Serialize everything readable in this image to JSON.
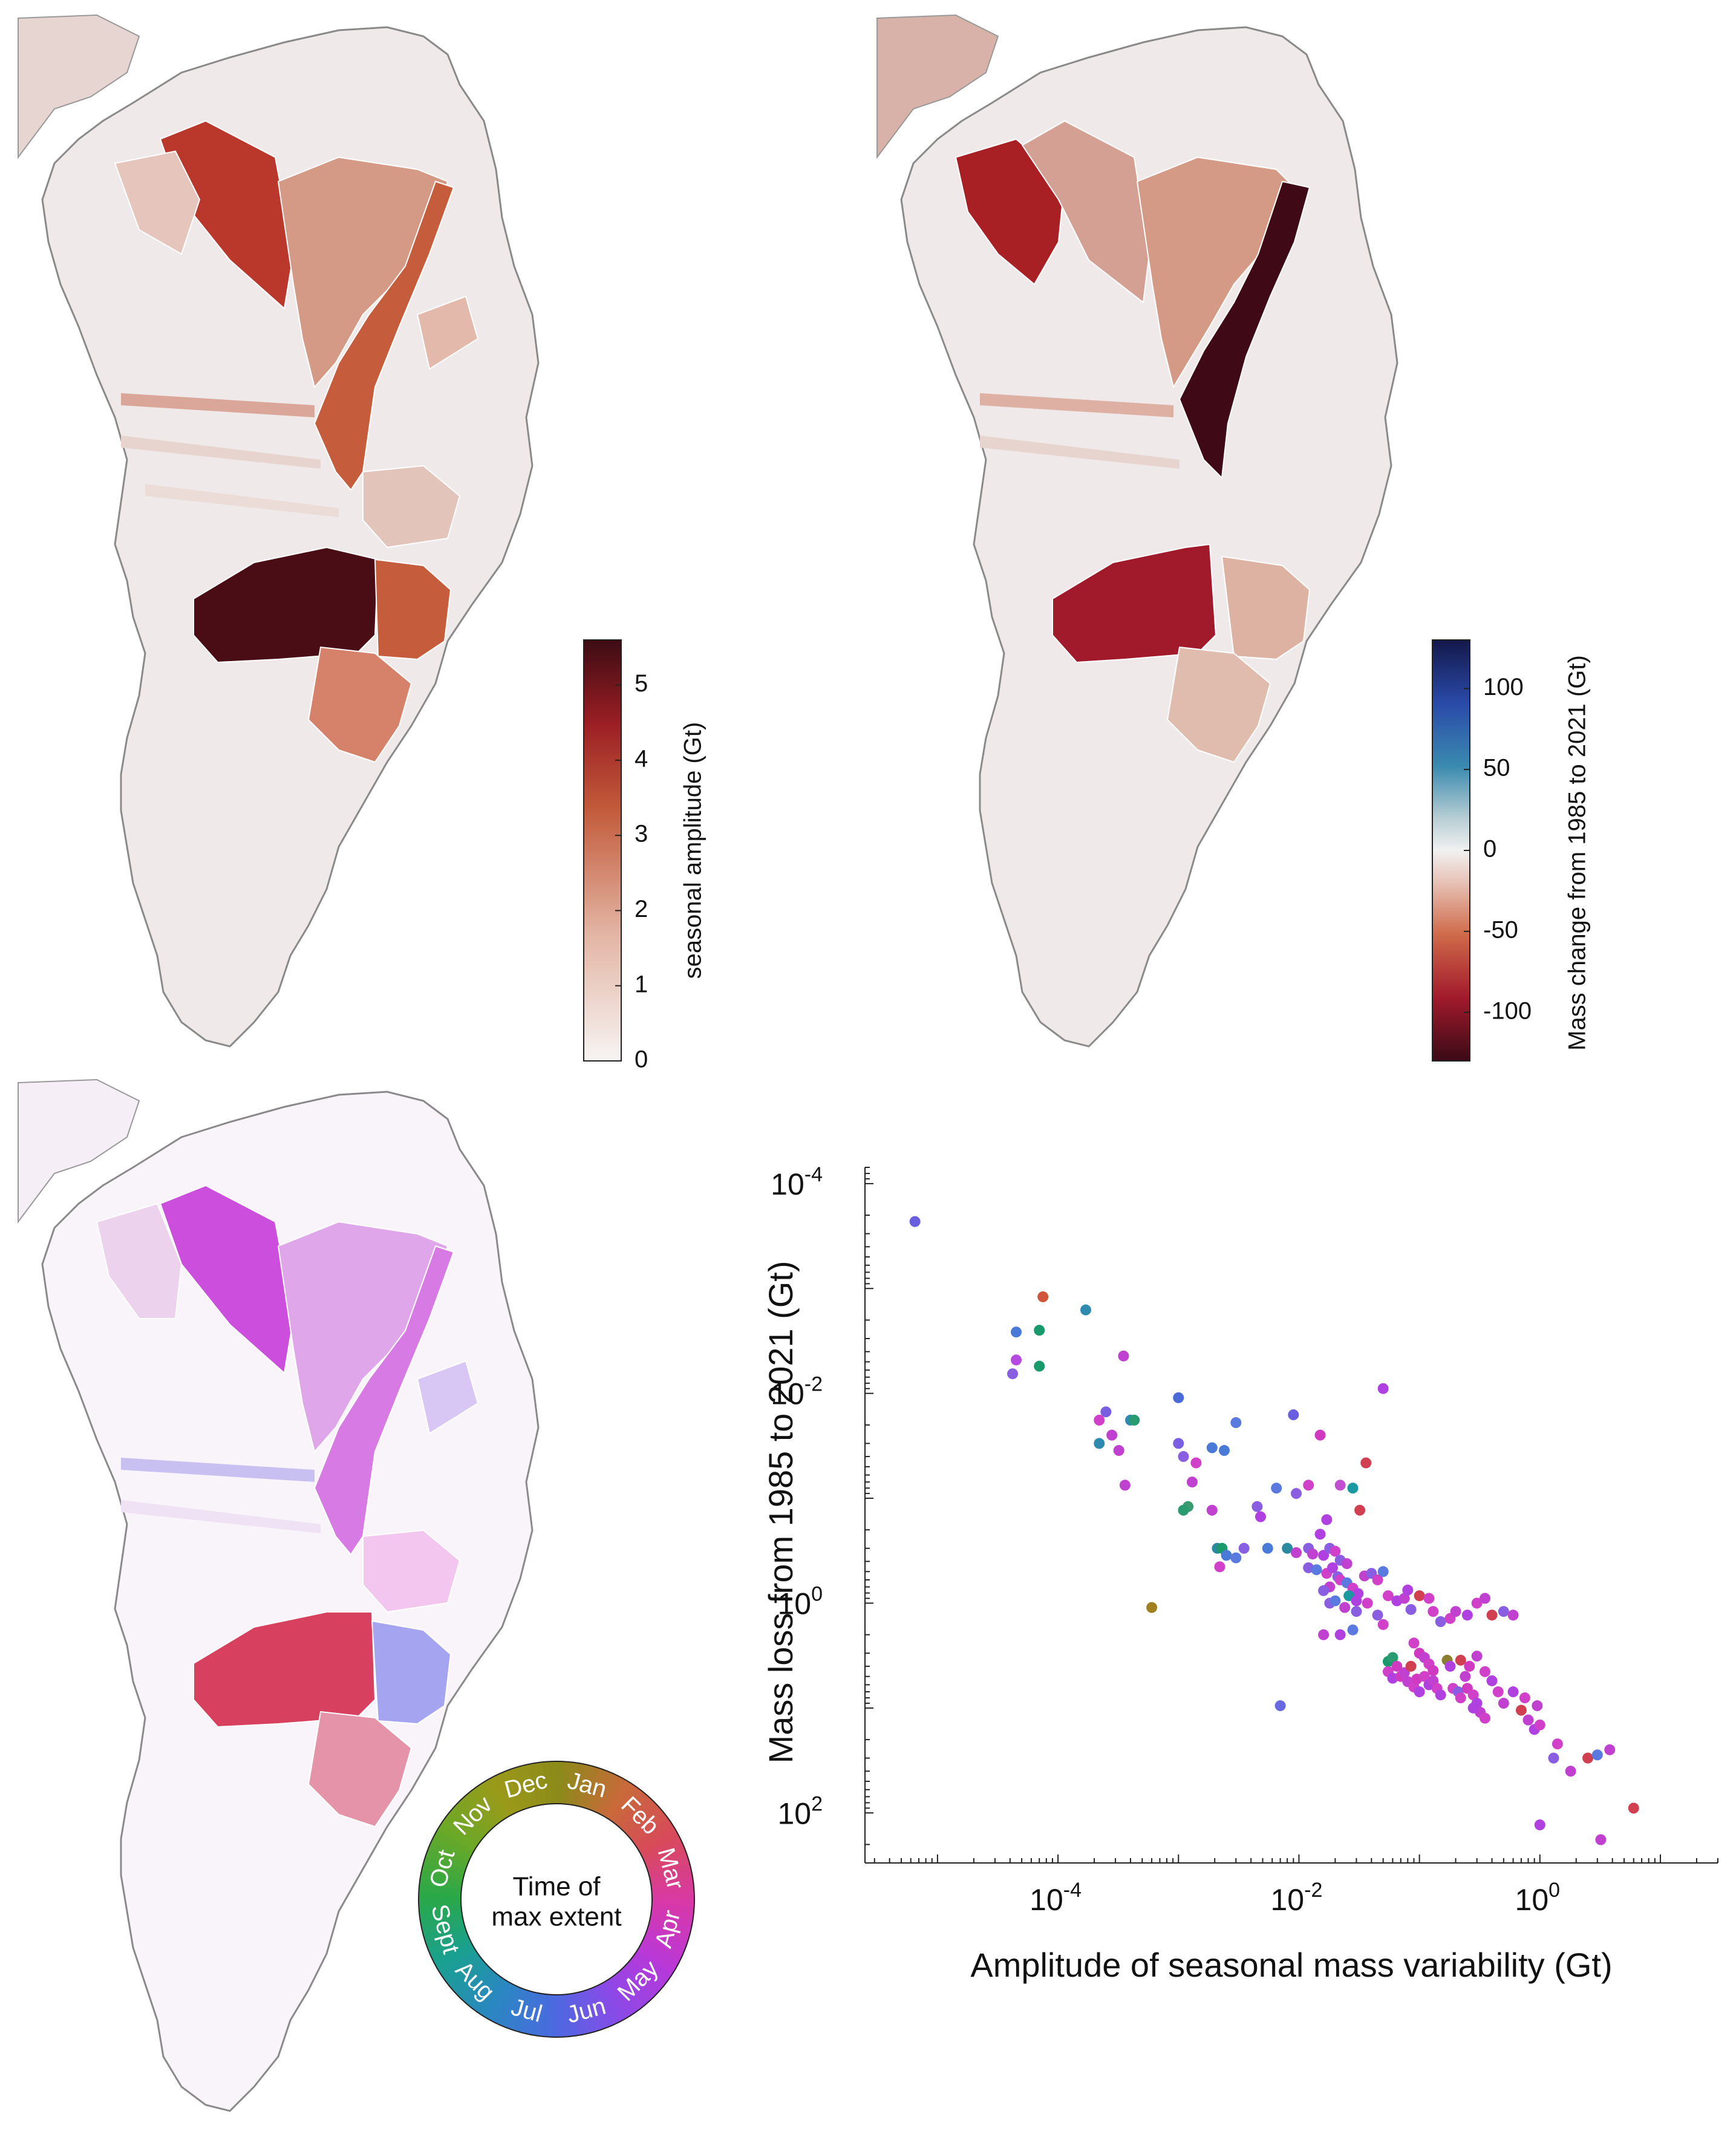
{
  "panels": {
    "amplitude_map": {
      "colorbar": {
        "title": "seasonal amplitude (Gt)",
        "ticks": [
          "0",
          "1",
          "2",
          "3",
          "4",
          "5"
        ],
        "range": [
          0,
          5.6
        ]
      }
    },
    "mass_change_map": {
      "colorbar": {
        "title": "Mass change from 1985 to 2021 (Gt)",
        "ticks": [
          "100",
          "50",
          "0",
          "-50",
          "-100"
        ],
        "range": [
          -130,
          130
        ]
      }
    },
    "timing_map": {
      "legend": {
        "center_line1": "Time of",
        "center_line2": "max extent",
        "months": [
          "Jan",
          "Feb",
          "Mar",
          "Apr",
          "May",
          "Jun",
          "Jul",
          "Aug",
          "Sept",
          "Oct",
          "Nov",
          "Dec"
        ]
      }
    }
  },
  "chart_data": {
    "type": "scatter",
    "xlabel": "Amplitude of seasonal mass variability (Gt)",
    "ylabel": "Mass loss from 1985 to 2021 (Gt)",
    "xscale": "log",
    "yscale": "log",
    "y_reversed": true,
    "xlim": [
      2.5e-06,
      30
    ],
    "ylim": [
      7e-05,
      300
    ],
    "xticks": [
      {
        "b": "10",
        "e": "-4"
      },
      {
        "b": "10",
        "e": "-2"
      },
      {
        "b": "10",
        "e": "0"
      }
    ],
    "yticks": [
      {
        "b": "10",
        "e": "-4"
      },
      {
        "b": "10",
        "e": "-2"
      },
      {
        "b": "10",
        "e": "0"
      },
      {
        "b": "10",
        "e": "2"
      }
    ],
    "points": [
      [
        6.5e-06,
        0.00023,
        "#6a5ee0"
      ],
      [
        7.5e-05,
        0.0012,
        "#d0553a"
      ],
      [
        0.00017,
        0.0016,
        "#2f8ab0"
      ],
      [
        4.5e-05,
        0.0026,
        "#4a7ad8"
      ],
      [
        7e-05,
        0.0025,
        "#1a9a6a"
      ],
      [
        4.5e-05,
        0.0048,
        "#b44ae0"
      ],
      [
        7e-05,
        0.0055,
        "#1a9a6a"
      ],
      [
        4.2e-05,
        0.0065,
        "#8a5ee0"
      ],
      [
        0.00035,
        0.0044,
        "#c040d0"
      ],
      [
        0.001,
        0.011,
        "#4a6ad8"
      ],
      [
        0.00025,
        0.015,
        "#7a5ee0"
      ],
      [
        0.00022,
        0.018,
        "#d040c8"
      ],
      [
        0.0004,
        0.018,
        "#2f8ab0"
      ],
      [
        0.00043,
        0.018,
        "#2a9a70"
      ],
      [
        0.00028,
        0.025,
        "#c040d0"
      ],
      [
        0.00022,
        0.03,
        "#2f8ab0"
      ],
      [
        0.00032,
        0.035,
        "#c040d0"
      ],
      [
        0.001,
        0.03,
        "#7a5ee0"
      ],
      [
        0.0014,
        0.046,
        "#d040c8"
      ],
      [
        0.003,
        0.019,
        "#5a7ae0"
      ],
      [
        0.009,
        0.016,
        "#6a5ee0"
      ],
      [
        0.015,
        0.025,
        "#d03ac0"
      ],
      [
        0.05,
        0.009,
        "#b040e0"
      ],
      [
        0.036,
        0.046,
        "#d04050"
      ],
      [
        0.0024,
        0.035,
        "#4a7ad8"
      ],
      [
        0.0011,
        0.04,
        "#8a5ee0"
      ],
      [
        0.0019,
        0.033,
        "#4a7ad8"
      ],
      [
        0.00036,
        0.075,
        "#c040d0"
      ],
      [
        0.0012,
        0.12,
        "#3a9a70"
      ],
      [
        0.0011,
        0.13,
        "#2a9a70"
      ],
      [
        0.0019,
        0.13,
        "#c040d0"
      ],
      [
        0.0045,
        0.12,
        "#8a5ee0"
      ],
      [
        0.0048,
        0.15,
        "#b040e0"
      ],
      [
        0.0095,
        0.09,
        "#8a5ee0"
      ],
      [
        0.0013,
        0.07,
        "#c040d0"
      ],
      [
        0.0065,
        0.08,
        "#5a7ae0"
      ],
      [
        0.012,
        0.075,
        "#d040c8"
      ],
      [
        0.022,
        0.075,
        "#c050d0"
      ],
      [
        0.028,
        0.08,
        "#1a9aa0"
      ],
      [
        0.032,
        0.13,
        "#d04050"
      ],
      [
        0.017,
        0.16,
        "#b040e0"
      ],
      [
        0.0021,
        0.3,
        "#2a8aa0"
      ],
      [
        0.0023,
        0.3,
        "#1a9a6a"
      ],
      [
        0.0025,
        0.35,
        "#4a7ad8"
      ],
      [
        0.003,
        0.37,
        "#5a7ae0"
      ],
      [
        0.0022,
        0.45,
        "#d040c8"
      ],
      [
        0.0035,
        0.3,
        "#8a5ee0"
      ],
      [
        0.0055,
        0.3,
        "#4a7ad8"
      ],
      [
        0.008,
        0.3,
        "#2a8aa0"
      ],
      [
        0.0095,
        0.33,
        "#c040d0"
      ],
      [
        0.012,
        0.3,
        "#8a5ee0"
      ],
      [
        0.015,
        0.22,
        "#b040e0"
      ],
      [
        0.013,
        0.34,
        "#c040d0"
      ],
      [
        0.016,
        0.35,
        "#b040e0"
      ],
      [
        0.018,
        0.3,
        "#8a5ee0"
      ],
      [
        0.02,
        0.32,
        "#d040c8"
      ],
      [
        0.022,
        0.39,
        "#8a5ee0"
      ],
      [
        0.025,
        0.42,
        "#c040d0"
      ],
      [
        0.012,
        0.46,
        "#8a5ee0"
      ],
      [
        0.014,
        0.48,
        "#5a7ae0"
      ],
      [
        0.017,
        0.52,
        "#d040c8"
      ],
      [
        0.019,
        0.46,
        "#b040e0"
      ],
      [
        0.021,
        0.56,
        "#8a5ee0"
      ],
      [
        0.022,
        0.6,
        "#d040c8"
      ],
      [
        0.018,
        0.7,
        "#c040d0"
      ],
      [
        0.016,
        0.76,
        "#8a5ee0"
      ],
      [
        0.025,
        0.64,
        "#5a7ae0"
      ],
      [
        0.028,
        0.72,
        "#d040c8"
      ],
      [
        0.031,
        0.81,
        "#b040e0"
      ],
      [
        0.035,
        0.55,
        "#c040d0"
      ],
      [
        0.04,
        0.52,
        "#8a5ee0"
      ],
      [
        0.045,
        0.6,
        "#d040c8"
      ],
      [
        0.05,
        0.5,
        "#5a7ae0"
      ],
      [
        0.026,
        0.85,
        "#1a9aa0"
      ],
      [
        0.03,
        0.95,
        "#b040e0"
      ],
      [
        0.037,
        1.0,
        "#d040c8"
      ],
      [
        0.018,
        1.0,
        "#8a5ee0"
      ],
      [
        0.02,
        0.95,
        "#5a7ae0"
      ],
      [
        0.024,
        1.1,
        "#c040d0"
      ],
      [
        0.03,
        1.2,
        "#8a5ee0"
      ],
      [
        0.055,
        0.85,
        "#d040c8"
      ],
      [
        0.065,
        0.95,
        "#b040e0"
      ],
      [
        0.075,
        0.9,
        "#c040d0"
      ],
      [
        0.085,
        1.15,
        "#8a5ee0"
      ],
      [
        0.1,
        0.85,
        "#d04050"
      ],
      [
        0.12,
        0.9,
        "#d040c8"
      ],
      [
        0.08,
        0.75,
        "#b040e0"
      ],
      [
        0.045,
        1.3,
        "#8a5ee0"
      ],
      [
        0.05,
        1.6,
        "#d040c8"
      ],
      [
        0.028,
        1.8,
        "#5a7ae0"
      ],
      [
        0.022,
        2.0,
        "#b040e0"
      ],
      [
        0.016,
        2.0,
        "#c040d0"
      ],
      [
        0.13,
        1.2,
        "#d040c8"
      ],
      [
        0.15,
        1.5,
        "#8a5ee0"
      ],
      [
        0.18,
        1.4,
        "#d040c8"
      ],
      [
        0.2,
        1.2,
        "#c040d0"
      ],
      [
        0.25,
        1.3,
        "#b040e0"
      ],
      [
        0.3,
        1.0,
        "#d040c8"
      ],
      [
        0.35,
        0.9,
        "#c040d0"
      ],
      [
        0.4,
        1.3,
        "#d04050"
      ],
      [
        0.5,
        1.2,
        "#8a5ee0"
      ],
      [
        0.6,
        1.3,
        "#c040d0"
      ],
      [
        0.09,
        2.4,
        "#d040c8"
      ],
      [
        0.1,
        3.0,
        "#d03ac0"
      ],
      [
        0.11,
        3.3,
        "#c040d0"
      ],
      [
        0.12,
        3.8,
        "#d040c8"
      ],
      [
        0.13,
        4.4,
        "#d03ac0"
      ],
      [
        0.055,
        3.6,
        "#1a9a6a"
      ],
      [
        0.06,
        3.3,
        "#2a9a70"
      ],
      [
        0.055,
        4.5,
        "#d040c8"
      ],
      [
        0.06,
        5.2,
        "#b040e0"
      ],
      [
        0.07,
        5.0,
        "#d03ac0"
      ],
      [
        0.08,
        5.6,
        "#c040d0"
      ],
      [
        0.09,
        6.3,
        "#d040c8"
      ],
      [
        0.1,
        7.0,
        "#b040e0"
      ],
      [
        0.065,
        4.0,
        "#d03ac0"
      ],
      [
        0.075,
        4.6,
        "#c040d0"
      ],
      [
        0.085,
        4.0,
        "#d04050"
      ],
      [
        0.095,
        5.3,
        "#d03ac0"
      ],
      [
        0.11,
        5.0,
        "#d040c8"
      ],
      [
        0.12,
        6.0,
        "#b040e0"
      ],
      [
        0.13,
        5.5,
        "#c040d0"
      ],
      [
        0.14,
        6.5,
        "#d040c8"
      ],
      [
        0.15,
        7.5,
        "#b040e0"
      ],
      [
        0.17,
        3.5,
        "#8a8030"
      ],
      [
        0.18,
        4.0,
        "#b040e0"
      ],
      [
        0.19,
        6.5,
        "#d040c8"
      ],
      [
        0.21,
        7.0,
        "#8a5ee0"
      ],
      [
        0.22,
        8.0,
        "#d040c8"
      ],
      [
        0.24,
        5.0,
        "#c040d0"
      ],
      [
        0.25,
        6.5,
        "#d03ac0"
      ],
      [
        0.28,
        7.5,
        "#d040c8"
      ],
      [
        0.3,
        9.0,
        "#b040e0"
      ],
      [
        0.32,
        11.0,
        "#c040d0"
      ],
      [
        0.35,
        12.5,
        "#d040c8"
      ],
      [
        0.22,
        3.5,
        "#d04050"
      ],
      [
        0.26,
        4.0,
        "#d03ac0"
      ],
      [
        0.3,
        3.2,
        "#c040d0"
      ],
      [
        0.35,
        4.5,
        "#d040c8"
      ],
      [
        0.4,
        5.5,
        "#b040e0"
      ],
      [
        0.45,
        7.0,
        "#d040c8"
      ],
      [
        0.5,
        9.0,
        "#c040d0"
      ],
      [
        0.6,
        7.0,
        "#b040e0"
      ],
      [
        0.7,
        10.5,
        "#d04050"
      ],
      [
        0.75,
        8.0,
        "#d040c8"
      ],
      [
        0.8,
        13.0,
        "#c040d0"
      ],
      [
        0.9,
        16.0,
        "#b040e0"
      ],
      [
        1.0,
        14.5,
        "#d040c8"
      ],
      [
        0.95,
        9.5,
        "#c040d0"
      ],
      [
        0.28,
        10.0,
        "#b040e0"
      ],
      [
        0.007,
        9.5,
        "#6a6ae0"
      ],
      [
        0.0006,
        1.1,
        "#a08020"
      ],
      [
        1.4,
        22.0,
        "#d040c8"
      ],
      [
        1.3,
        30.0,
        "#8a5ee0"
      ],
      [
        1.8,
        40.0,
        "#c040d0"
      ],
      [
        2.5,
        30.0,
        "#d04050"
      ],
      [
        3.0,
        28.0,
        "#5a7ae0"
      ],
      [
        3.8,
        25.0,
        "#c040d0"
      ],
      [
        1.0,
        130.0,
        "#b040e0"
      ],
      [
        3.2,
        180.0,
        "#c040d0"
      ],
      [
        6.0,
        90.0,
        "#d04050"
      ]
    ]
  }
}
